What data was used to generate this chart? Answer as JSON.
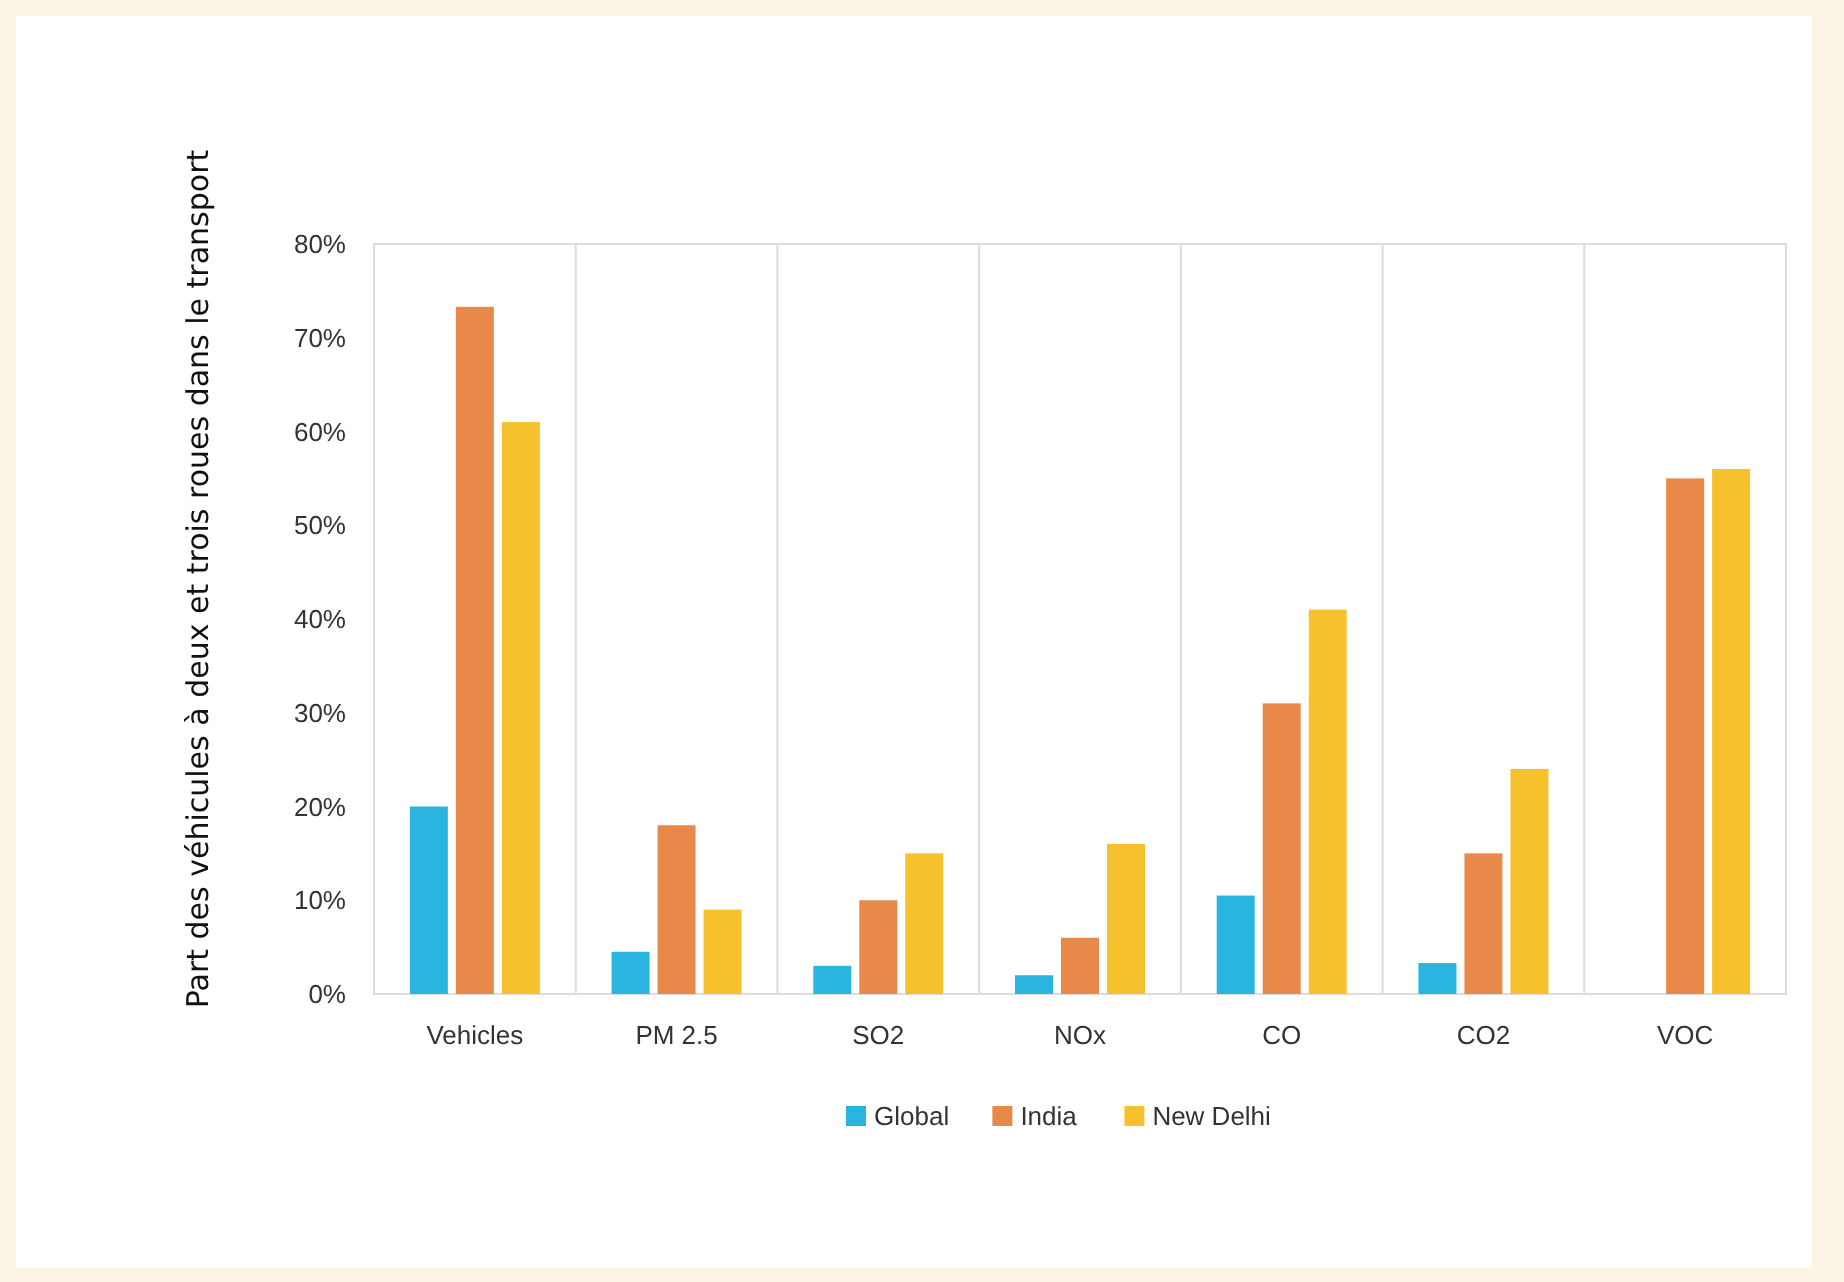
{
  "chart_data": {
    "type": "bar",
    "ylabel": "Part des véhicules à deux et trois roues dans le transport",
    "categories": [
      "Vehicles",
      "PM 2.5",
      "SO2",
      "NOx",
      "CO",
      "CO2",
      "VOC"
    ],
    "series": [
      {
        "name": "Global",
        "color": "#29b5e0",
        "values": [
          20,
          4.5,
          3,
          2,
          10.5,
          3.3,
          null
        ]
      },
      {
        "name": "India",
        "color": "#e8894a",
        "values": [
          73.3,
          18,
          10,
          6,
          31,
          15,
          55
        ]
      },
      {
        "name": "New Delhi",
        "color": "#f6c12c",
        "values": [
          61,
          9,
          15,
          16,
          41,
          24,
          56
        ]
      }
    ],
    "ylim": [
      0,
      80
    ],
    "yticks": [
      {
        "value": 0,
        "label": "0%"
      },
      {
        "value": 10,
        "label": "10%"
      },
      {
        "value": 20,
        "label": "20%"
      },
      {
        "value": 30,
        "label": "30%"
      },
      {
        "value": 40,
        "label": "40%"
      },
      {
        "value": 50,
        "label": "50%"
      },
      {
        "value": 60,
        "label": "60%"
      },
      {
        "value": 70,
        "label": "70%"
      },
      {
        "value": 80,
        "label": "80%"
      }
    ],
    "grid": "x",
    "legend": "bottom"
  }
}
